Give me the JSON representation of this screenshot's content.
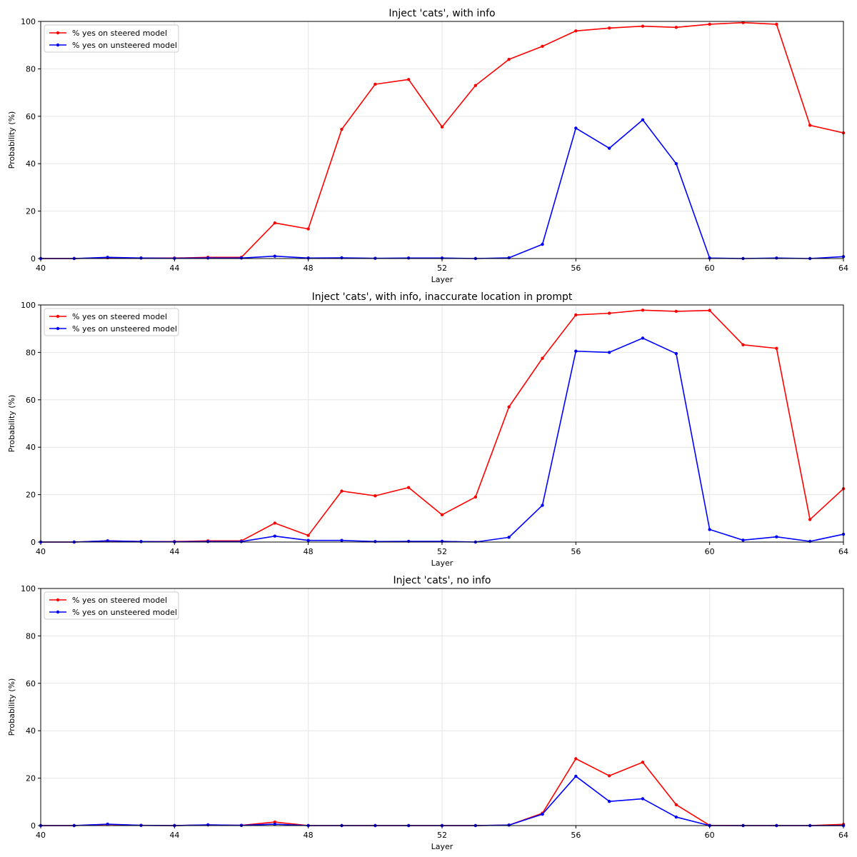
{
  "chart_data": [
    {
      "type": "line",
      "title": "Inject 'cats', with info",
      "xlabel": "Layer",
      "ylabel": "Probability (%)",
      "xlim": [
        40,
        64
      ],
      "ylim": [
        0,
        100
      ],
      "xticks": [
        40,
        44,
        48,
        52,
        56,
        60,
        64
      ],
      "yticks": [
        0,
        20,
        40,
        60,
        80,
        100
      ],
      "grid": true,
      "legend_position": "upper-left",
      "x": [
        40,
        41,
        42,
        43,
        44,
        45,
        46,
        47,
        48,
        49,
        50,
        51,
        52,
        53,
        54,
        55,
        56,
        57,
        58,
        59,
        60,
        61,
        62,
        63,
        64
      ],
      "series": [
        {
          "name": "% yes on steered model",
          "color": "#ff0000",
          "values": [
            0,
            0,
            0.3,
            0.2,
            0.2,
            0.5,
            0.5,
            15,
            12.5,
            54.5,
            73.5,
            75.5,
            55.5,
            73,
            84,
            89.5,
            96,
            97.2,
            98,
            97.5,
            98.8,
            99.5,
            98.8,
            56.2,
            53
          ]
        },
        {
          "name": "% yes on unsteered model",
          "color": "#0000ff",
          "values": [
            0,
            0,
            0.5,
            0.2,
            0.1,
            0.2,
            0.2,
            1,
            0.2,
            0.3,
            0.1,
            0.2,
            0.2,
            0,
            0.3,
            6,
            55,
            46.5,
            58.5,
            40,
            0.2,
            0,
            0.2,
            0,
            0.8
          ]
        }
      ]
    },
    {
      "type": "line",
      "title": "Inject 'cats', with info, inaccurate location in prompt",
      "xlabel": "Layer",
      "ylabel": "Probability (%)",
      "xlim": [
        40,
        64
      ],
      "ylim": [
        0,
        100
      ],
      "xticks": [
        40,
        44,
        48,
        52,
        56,
        60,
        64
      ],
      "yticks": [
        0,
        20,
        40,
        60,
        80,
        100
      ],
      "grid": true,
      "legend_position": "upper-left",
      "x": [
        40,
        41,
        42,
        43,
        44,
        45,
        46,
        47,
        48,
        49,
        50,
        51,
        52,
        53,
        54,
        55,
        56,
        57,
        58,
        59,
        60,
        61,
        62,
        63,
        64
      ],
      "series": [
        {
          "name": "% yes on steered model",
          "color": "#ff0000",
          "values": [
            0,
            0,
            0.5,
            0.2,
            0.2,
            0.5,
            0.5,
            8,
            2.8,
            21.5,
            19.5,
            23,
            11.5,
            19,
            57,
            77.5,
            95.8,
            96.5,
            97.8,
            97.3,
            97.7,
            83.2,
            81.7,
            9.5,
            22.5
          ]
        },
        {
          "name": "% yes on unsteered model",
          "color": "#0000ff",
          "values": [
            0,
            0,
            0.5,
            0.2,
            0.1,
            0.2,
            0.2,
            2.5,
            0.7,
            0.7,
            0.2,
            0.3,
            0.3,
            0,
            2,
            15.5,
            80.5,
            80,
            86,
            79.5,
            5.3,
            0.8,
            2.2,
            0.3,
            3.3
          ]
        }
      ]
    },
    {
      "type": "line",
      "title": "Inject 'cats', no info",
      "xlabel": "Layer",
      "ylabel": "Probability (%)",
      "xlim": [
        40,
        64
      ],
      "ylim": [
        0,
        100
      ],
      "xticks": [
        40,
        44,
        48,
        52,
        56,
        60,
        64
      ],
      "yticks": [
        0,
        20,
        40,
        60,
        80,
        100
      ],
      "grid": true,
      "legend_position": "upper-left",
      "x": [
        40,
        41,
        42,
        43,
        44,
        45,
        46,
        47,
        48,
        49,
        50,
        51,
        52,
        53,
        54,
        55,
        56,
        57,
        58,
        59,
        60,
        61,
        62,
        63,
        64
      ],
      "series": [
        {
          "name": "% yes on steered model",
          "color": "#ff0000",
          "values": [
            0,
            0,
            0.5,
            0.1,
            0,
            0.3,
            0.1,
            1.5,
            0,
            0,
            0,
            0,
            0,
            0,
            0.2,
            5.2,
            28.2,
            21,
            26.7,
            8.8,
            0.1,
            0,
            0,
            0,
            0.5
          ]
        },
        {
          "name": "% yes on unsteered model",
          "color": "#0000ff",
          "values": [
            0,
            0,
            0.6,
            0.1,
            0,
            0.3,
            0.1,
            0.6,
            0,
            0,
            0,
            0,
            0,
            0,
            0.2,
            4.8,
            20.8,
            10.2,
            11.3,
            3.6,
            0,
            0,
            0,
            0,
            0
          ]
        }
      ]
    }
  ]
}
